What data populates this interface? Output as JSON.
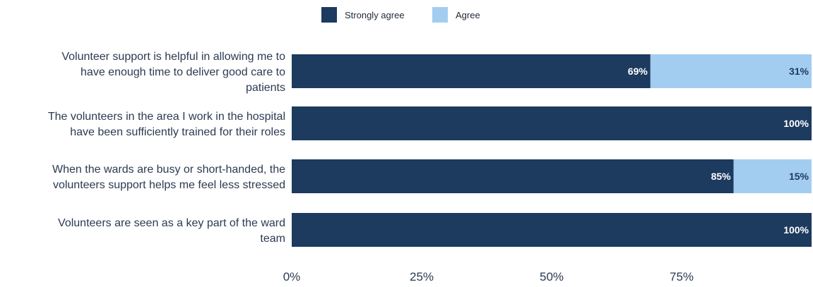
{
  "chart_data": {
    "type": "bar",
    "orientation": "horizontal",
    "stacked": true,
    "categories": [
      "Volunteer support is helpful in allowing me to have enough time to deliver good care to patients",
      "The volunteers in the area I work in the hospital have been sufficiently trained for their roles",
      "When the wards are busy or short-handed, the volunteers support helps me feel less stressed",
      "Volunteers are seen as a key part of the ward team"
    ],
    "category_lines": [
      [
        "Volunteer support is helpful in allowing me to",
        "have enough time to deliver good care to",
        "patients"
      ],
      [
        "The volunteers in the area I work in the hospital",
        "have been sufficiently trained for their roles"
      ],
      [
        "When the wards are busy or short-handed, the",
        "volunteers support helps me feel less stressed"
      ],
      [
        "Volunteers are seen as a key part of the ward",
        "team"
      ]
    ],
    "series": [
      {
        "name": "Strongly agree",
        "color": "#1d3a5f",
        "label_color": "#ffffff",
        "values": [
          69,
          100,
          85,
          100
        ],
        "labels": [
          "69%",
          "100%",
          "85%",
          "100%"
        ]
      },
      {
        "name": "Agree",
        "color": "#a3cdf0",
        "label_color": "#1d3a5f",
        "values": [
          31,
          0,
          15,
          0
        ],
        "labels": [
          "31%",
          "",
          "15%",
          ""
        ]
      }
    ],
    "x_ticks": [
      "0%",
      "25%",
      "50%",
      "75%"
    ],
    "x_tick_values": [
      0,
      25,
      50,
      75
    ],
    "xlim": [
      0,
      100
    ],
    "legend_position": "top-center",
    "grid": false
  }
}
